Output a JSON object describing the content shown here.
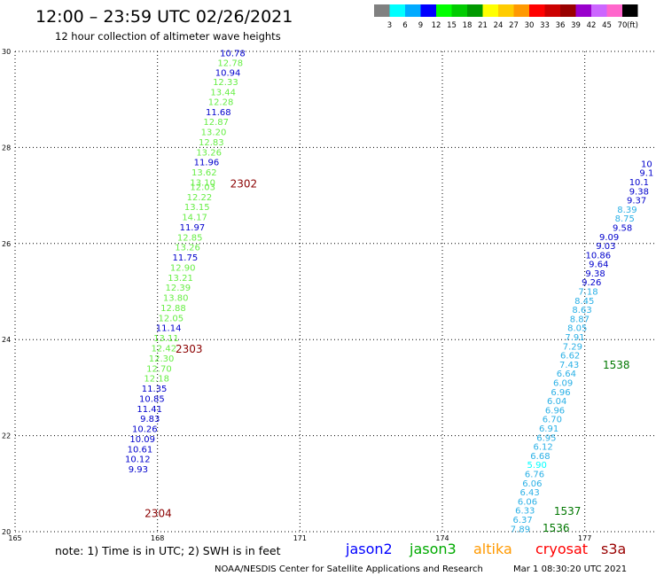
{
  "header": {
    "title": "12:00 – 23:59 UTC 02/26/2021",
    "subtitle": "12 hour collection of altimeter wave heights"
  },
  "legend": {
    "colors": [
      "#808080",
      "#00ffff",
      "#00aaff",
      "#0000ff",
      "#00ff00",
      "#00cc00",
      "#009900",
      "#ffff00",
      "#ffcc00",
      "#ff9900",
      "#ff0000",
      "#cc0000",
      "#990000",
      "#9900cc",
      "#cc66ff",
      "#ff66cc",
      "#000000"
    ],
    "labels": [
      "3",
      "6",
      "9",
      "12",
      "15",
      "18",
      "21",
      "24",
      "27",
      "30",
      "33",
      "36",
      "39",
      "42",
      "45",
      "70",
      "(ft)"
    ]
  },
  "footnote": {
    "note": "note:  1) Time is in UTC; 2) SWH is in feet",
    "satellites": [
      {
        "name": "jason2",
        "color": "#0000ff"
      },
      {
        "name": "jason3",
        "color": "#00aa00"
      },
      {
        "name": "altika",
        "color": "#ff9900"
      },
      {
        "name": "cryosat",
        "color": "#ff0000"
      },
      {
        "name": "s3a",
        "color": "#990000"
      }
    ],
    "credit": "NOAA/NESDIS Center for Satellite Applications and Research",
    "timestamp": "Mar  1 08:30:20 UTC 2021"
  },
  "chart_data": {
    "type": "scatter",
    "xlim": [
      165,
      178.5
    ],
    "ylim": [
      20,
      30
    ],
    "xticks": [
      "165",
      "168",
      "171",
      "174",
      "177"
    ],
    "yticks": [
      "20",
      "22",
      "24",
      "26",
      "28",
      "30"
    ],
    "grid": true,
    "color_scale": {
      "bounds": [
        3,
        6,
        9,
        12,
        15,
        18
      ],
      "colors": [
        "#808080",
        "#00ffff",
        "#2ab0e6",
        "#0000cc",
        "#66ee44",
        "#00cc00",
        "#009900"
      ]
    },
    "series": [
      {
        "name": "track-west",
        "points": [
          {
            "x": 169.85,
            "y": 29.95,
            "v": "10.78"
          },
          {
            "x": 169.8,
            "y": 29.75,
            "v": "12.78"
          },
          {
            "x": 169.75,
            "y": 29.55,
            "v": "10.94"
          },
          {
            "x": 169.7,
            "y": 29.35,
            "v": "12.33"
          },
          {
            "x": 169.65,
            "y": 29.14,
            "v": "13.44"
          },
          {
            "x": 169.6,
            "y": 28.94,
            "v": "12.28"
          },
          {
            "x": 169.55,
            "y": 28.73,
            "v": "11.68"
          },
          {
            "x": 169.5,
            "y": 28.52,
            "v": "12.87"
          },
          {
            "x": 169.45,
            "y": 28.31,
            "v": "13.20"
          },
          {
            "x": 169.4,
            "y": 28.1,
            "v": "12.83"
          },
          {
            "x": 169.35,
            "y": 27.89,
            "v": "13.26"
          },
          {
            "x": 169.3,
            "y": 27.68,
            "v": "11.96"
          },
          {
            "x": 169.25,
            "y": 27.47,
            "v": "13.62"
          },
          {
            "x": 169.22,
            "y": 27.26,
            "v": "13.10"
          },
          {
            "x": 169.22,
            "y": 27.17,
            "v": "12.03"
          },
          {
            "x": 169.15,
            "y": 26.96,
            "v": "12.22"
          },
          {
            "x": 169.1,
            "y": 26.75,
            "v": "13.15"
          },
          {
            "x": 169.05,
            "y": 26.54,
            "v": "14.17"
          },
          {
            "x": 169.0,
            "y": 26.33,
            "v": "11.97"
          },
          {
            "x": 168.95,
            "y": 26.12,
            "v": "12.85"
          },
          {
            "x": 168.9,
            "y": 25.91,
            "v": "13.26"
          },
          {
            "x": 168.85,
            "y": 25.7,
            "v": "11.75"
          },
          {
            "x": 168.8,
            "y": 25.49,
            "v": "12.90"
          },
          {
            "x": 168.75,
            "y": 25.28,
            "v": "13.21"
          },
          {
            "x": 168.7,
            "y": 25.07,
            "v": "12.39"
          },
          {
            "x": 168.65,
            "y": 24.86,
            "v": "13.80"
          },
          {
            "x": 168.6,
            "y": 24.65,
            "v": "12.88"
          },
          {
            "x": 168.55,
            "y": 24.44,
            "v": "12.05"
          },
          {
            "x": 168.5,
            "y": 24.23,
            "v": "11.14"
          },
          {
            "x": 168.45,
            "y": 24.02,
            "v": "13.11"
          },
          {
            "x": 168.4,
            "y": 23.81,
            "v": "12.42"
          },
          {
            "x": 168.35,
            "y": 23.6,
            "v": "12.30"
          },
          {
            "x": 168.3,
            "y": 23.39,
            "v": "12.70"
          },
          {
            "x": 168.25,
            "y": 23.18,
            "v": "12.18"
          },
          {
            "x": 168.2,
            "y": 22.97,
            "v": "11.35"
          },
          {
            "x": 168.15,
            "y": 22.76,
            "v": "10.85"
          },
          {
            "x": 168.1,
            "y": 22.55,
            "v": "11.41"
          },
          {
            "x": 168.05,
            "y": 22.34,
            "v": "9.83"
          },
          {
            "x": 168.0,
            "y": 22.13,
            "v": "10.26"
          },
          {
            "x": 167.95,
            "y": 21.92,
            "v": "10.09"
          },
          {
            "x": 167.9,
            "y": 21.71,
            "v": "10.61"
          },
          {
            "x": 167.85,
            "y": 21.5,
            "v": "10.12"
          },
          {
            "x": 167.8,
            "y": 21.29,
            "v": "9.93"
          }
        ],
        "times": [
          {
            "x": 170.1,
            "y": 27.24,
            "t": "2302"
          },
          {
            "x": 168.95,
            "y": 23.8,
            "t": "2303"
          },
          {
            "x": 168.3,
            "y": 20.38,
            "t": "2304"
          }
        ]
      },
      {
        "name": "track-east",
        "points": [
          {
            "x": 178.42,
            "y": 27.65,
            "v": "10"
          },
          {
            "x": 178.45,
            "y": 27.46,
            "v": "9.1"
          },
          {
            "x": 178.35,
            "y": 27.27,
            "v": "10.1"
          },
          {
            "x": 178.35,
            "y": 27.08,
            "v": "9.38"
          },
          {
            "x": 178.3,
            "y": 26.89,
            "v": "9.37"
          },
          {
            "x": 178.1,
            "y": 26.7,
            "v": "8.39"
          },
          {
            "x": 178.05,
            "y": 26.51,
            "v": "8.75"
          },
          {
            "x": 178.0,
            "y": 26.32,
            "v": "9.58"
          },
          {
            "x": 177.72,
            "y": 26.13,
            "v": "9.09"
          },
          {
            "x": 177.65,
            "y": 25.94,
            "v": "9.03"
          },
          {
            "x": 177.55,
            "y": 25.75,
            "v": "10.86"
          },
          {
            "x": 177.5,
            "y": 25.56,
            "v": "9.64"
          },
          {
            "x": 177.43,
            "y": 25.37,
            "v": "9.38"
          },
          {
            "x": 177.35,
            "y": 25.18,
            "v": "9.26"
          },
          {
            "x": 177.28,
            "y": 24.99,
            "v": "7.18"
          },
          {
            "x": 177.2,
            "y": 24.8,
            "v": "8.45"
          },
          {
            "x": 177.15,
            "y": 24.61,
            "v": "8.63"
          },
          {
            "x": 177.1,
            "y": 24.42,
            "v": "8.87"
          },
          {
            "x": 177.05,
            "y": 24.23,
            "v": "8.05"
          },
          {
            "x": 177.0,
            "y": 24.04,
            "v": "7.91"
          },
          {
            "x": 176.95,
            "y": 23.85,
            "v": "7.29"
          },
          {
            "x": 176.9,
            "y": 23.66,
            "v": "6.62"
          },
          {
            "x": 176.88,
            "y": 23.47,
            "v": "7.43"
          },
          {
            "x": 176.82,
            "y": 23.28,
            "v": "6.64"
          },
          {
            "x": 176.75,
            "y": 23.09,
            "v": "6.09"
          },
          {
            "x": 176.7,
            "y": 22.9,
            "v": "6.96"
          },
          {
            "x": 176.62,
            "y": 22.71,
            "v": "6.04"
          },
          {
            "x": 176.58,
            "y": 22.52,
            "v": "6.96"
          },
          {
            "x": 176.52,
            "y": 22.33,
            "v": "6.70"
          },
          {
            "x": 176.45,
            "y": 22.14,
            "v": "6.91"
          },
          {
            "x": 176.4,
            "y": 21.95,
            "v": "6.95"
          },
          {
            "x": 176.33,
            "y": 21.76,
            "v": "6.12"
          },
          {
            "x": 176.27,
            "y": 21.57,
            "v": "6.68"
          },
          {
            "x": 176.2,
            "y": 21.38,
            "v": "5.90"
          },
          {
            "x": 176.15,
            "y": 21.19,
            "v": "6.76"
          },
          {
            "x": 176.1,
            "y": 21.0,
            "v": "6.06"
          },
          {
            "x": 176.05,
            "y": 20.81,
            "v": "6.43"
          },
          {
            "x": 176.0,
            "y": 20.62,
            "v": "6.06"
          },
          {
            "x": 175.95,
            "y": 20.43,
            "v": "6.33"
          },
          {
            "x": 175.9,
            "y": 20.24,
            "v": "6.37"
          },
          {
            "x": 175.85,
            "y": 20.05,
            "v": "7.89"
          }
        ],
        "times": [
          {
            "x": 177.95,
            "y": 23.47,
            "t": "1538",
            "color": "#007700"
          },
          {
            "x": 176.92,
            "y": 20.42,
            "t": "1537",
            "color": "#007700"
          },
          {
            "x": 176.68,
            "y": 20.07,
            "t": "1536",
            "color": "#007700"
          }
        ]
      }
    ]
  }
}
